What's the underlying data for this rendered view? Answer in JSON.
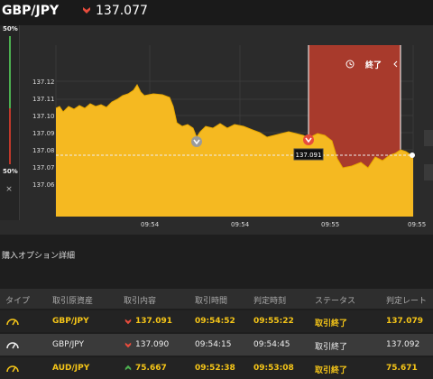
{
  "header": {
    "pair": "GBP/JPY",
    "price": "137.077",
    "trend": "down",
    "trend_color": "#e74c3c"
  },
  "level": {
    "top_label": "50%",
    "bottom_label": "50%",
    "close_label": "×"
  },
  "chart": {
    "end_label": "終了",
    "y_ticks": [
      "137.12",
      "137.11",
      "137.10",
      "137.09",
      "137.08",
      "137.07",
      "137.06"
    ],
    "x_ticks": [
      "09:54",
      "09:54",
      "09:55",
      "09:55"
    ],
    "current_price_label": "137.091",
    "fill_color": "#f5b921",
    "expiry_zone_color": "#a83a2c"
  },
  "details": {
    "title": "購入オプション詳細",
    "columns": [
      "タイプ",
      "取引原資産",
      "取引内容",
      "取引時間",
      "判定時刻",
      "ステータス",
      "判定レート"
    ],
    "rows": [
      {
        "type_icon": "gauge-icon",
        "asset": "GBP/JPY",
        "direction": "down",
        "entry": "137.091",
        "trade_time": "09:54:52",
        "judge_time": "09:55:22",
        "status": "取引終了",
        "rate": "137.079"
      },
      {
        "type_icon": "gauge-icon",
        "asset": "GBP/JPY",
        "direction": "down",
        "entry": "137.090",
        "trade_time": "09:54:15",
        "judge_time": "09:54:45",
        "status": "取引終了",
        "rate": "137.092"
      },
      {
        "type_icon": "gauge-icon",
        "asset": "AUD/JPY",
        "direction": "up",
        "entry": "75.667",
        "trade_time": "09:52:38",
        "judge_time": "09:53:08",
        "status": "取引終了",
        "rate": "75.671"
      }
    ]
  }
}
